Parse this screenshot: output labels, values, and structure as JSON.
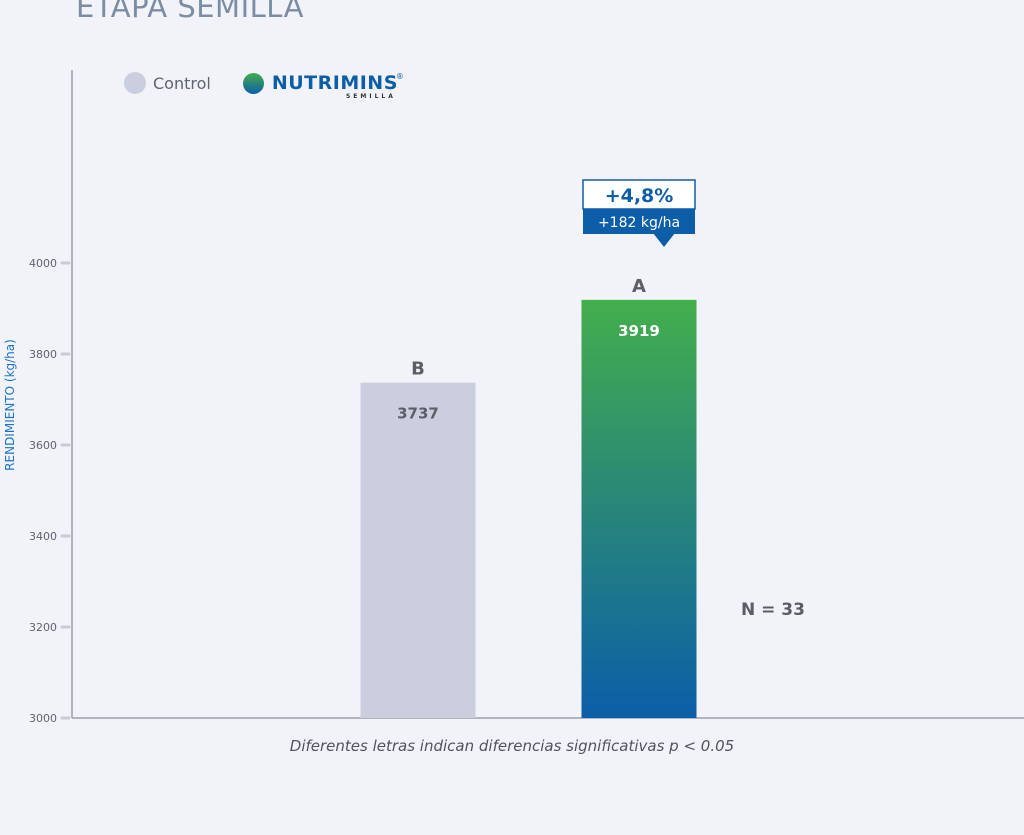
{
  "title": "ETAPA SEMILLA",
  "legend": {
    "control_label": "Control",
    "brand_name": "NUTRIMINS",
    "brand_sub": "SEMILLA",
    "brand_reg": "®"
  },
  "note": "Diferentes letras indican diferencias significativas p < 0.05",
  "n_label": "N = 33",
  "colors": {
    "control": "#cacedf",
    "treatment_top": "#43ae4c",
    "treatment_bottom": "#0b5ea8",
    "callout": "#0d5ea8"
  },
  "chart_data": {
    "type": "bar",
    "ylabel": "RENDIMIENTO (kg/ha)",
    "ylim": [
      3000,
      4000
    ],
    "yticks": [
      3000,
      3200,
      3400,
      3600,
      3800,
      4000
    ],
    "grid": false,
    "legend_position": "top-left",
    "categories": [
      "Control",
      "NUTRIMINS SEMILLA"
    ],
    "values": [
      3737,
      3919
    ],
    "value_labels": [
      "3737",
      "3919"
    ],
    "letters": [
      "B",
      "A"
    ],
    "callout": {
      "percent": "+4,8%",
      "absolute": "+182 kg/ha"
    }
  }
}
